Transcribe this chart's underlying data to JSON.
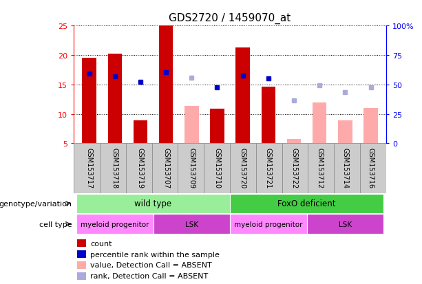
{
  "title": "GDS2720 / 1459070_at",
  "samples": [
    "GSM153717",
    "GSM153718",
    "GSM153719",
    "GSM153707",
    "GSM153709",
    "GSM153710",
    "GSM153720",
    "GSM153721",
    "GSM153722",
    "GSM153712",
    "GSM153714",
    "GSM153716"
  ],
  "count_values": [
    19.5,
    20.2,
    8.9,
    25.0,
    null,
    10.9,
    21.2,
    14.6,
    null,
    null,
    null,
    null
  ],
  "count_absent": [
    null,
    null,
    null,
    null,
    11.3,
    null,
    null,
    null,
    5.8,
    11.9,
    8.9,
    11.0
  ],
  "rank_present": [
    16.8,
    16.3,
    15.4,
    17.0,
    null,
    14.5,
    16.5,
    16.0,
    null,
    null,
    null,
    null
  ],
  "rank_absent": [
    null,
    null,
    null,
    null,
    16.1,
    null,
    null,
    null,
    12.3,
    14.8,
    13.7,
    14.5
  ],
  "ylim_left": [
    5,
    25
  ],
  "ylim_right": [
    0,
    100
  ],
  "yticks_left": [
    5,
    10,
    15,
    20,
    25
  ],
  "yticks_right": [
    0,
    25,
    50,
    75,
    100
  ],
  "ytick_right_labels": [
    "0",
    "25",
    "50",
    "75",
    "100%"
  ],
  "color_count": "#cc0000",
  "color_rank_present": "#0000cc",
  "color_count_absent": "#ffaaaa",
  "color_rank_absent": "#aaaadd",
  "genotype_groups": [
    {
      "label": "wild type",
      "start": 0,
      "end": 5,
      "color": "#aaeea a"
    },
    {
      "label": "FoxO deficient",
      "start": 6,
      "end": 11,
      "color": "#44cc44"
    }
  ],
  "cell_groups": [
    {
      "label": "myeloid progenitor",
      "start": 0,
      "end": 2,
      "color": "#ff88ff"
    },
    {
      "label": "LSK",
      "start": 3,
      "end": 5,
      "color": "#cc44cc"
    },
    {
      "label": "myeloid progenitor",
      "start": 6,
      "end": 8,
      "color": "#ff88ff"
    },
    {
      "label": "LSK",
      "start": 9,
      "end": 11,
      "color": "#cc44cc"
    }
  ],
  "legend_items": [
    {
      "label": "count",
      "color": "#cc0000"
    },
    {
      "label": "percentile rank within the sample",
      "color": "#0000cc"
    },
    {
      "label": "value, Detection Call = ABSENT",
      "color": "#ffaaaa"
    },
    {
      "label": "rank, Detection Call = ABSENT",
      "color": "#aaaadd"
    }
  ],
  "label_genotype": "genotype/variation",
  "label_celltype": "cell type"
}
